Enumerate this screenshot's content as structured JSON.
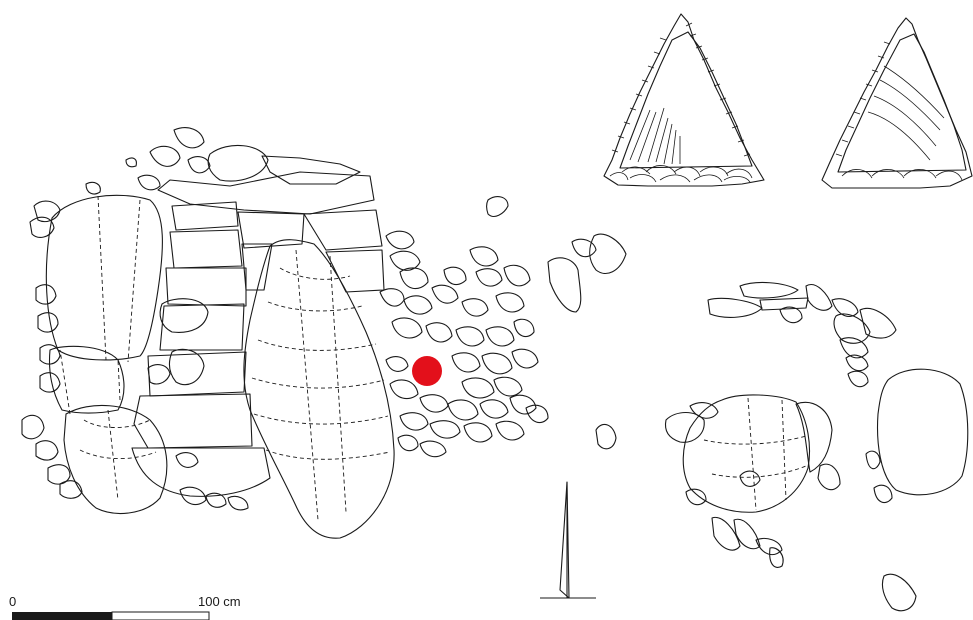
{
  "scale_bar": {
    "start_label": "0",
    "end_label": "100 cm"
  },
  "find_marker": {
    "color": "#e3101b"
  },
  "north_arrow": {
    "icon": "north-arrow-icon"
  }
}
